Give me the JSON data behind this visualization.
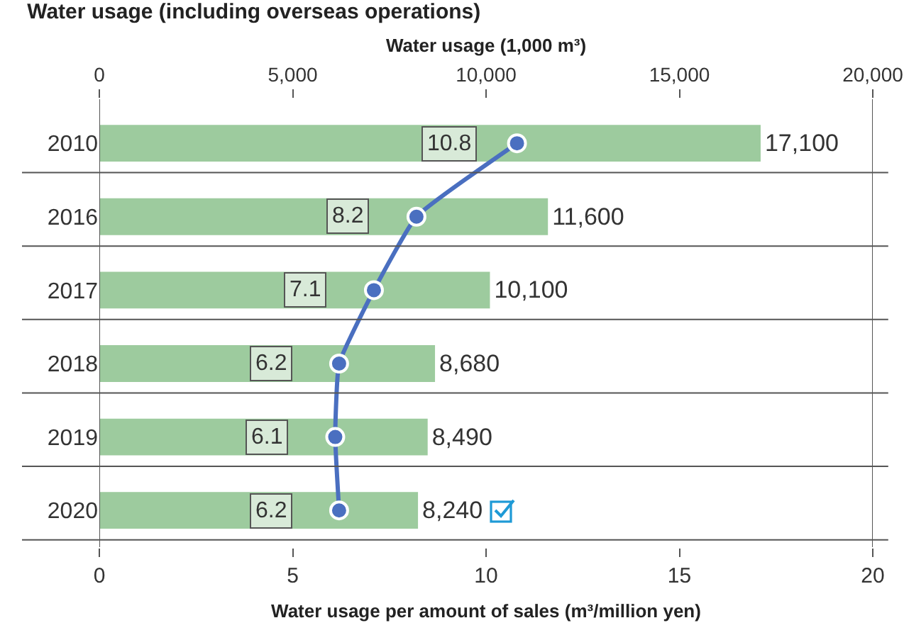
{
  "chart_data": {
    "type": "bar",
    "orientation": "horizontal",
    "title": "Water usage (including overseas operations)",
    "xlabel": "Water usage (1,000 m³)",
    "x2label": "Water usage per amount of sales (m³/million yen)",
    "categories": [
      "2010",
      "2016",
      "2017",
      "2018",
      "2019",
      "2020"
    ],
    "series": [
      {
        "color": "#9dcb9e",
        "values": [
          17100,
          11600,
          10100,
          8680,
          8490,
          8240
        ],
        "value_labels": [
          "17,100",
          "11,600",
          "10,100",
          "8,680",
          "8,490",
          "8,240"
        ]
      },
      {
        "type": "line",
        "axis": "x2",
        "color": "#4a6fc0",
        "values": [
          10.8,
          8.2,
          7.1,
          6.2,
          6.1,
          6.2
        ],
        "value_labels": [
          "10.8",
          "8.2",
          "7.1",
          "6.2",
          "6.1",
          "6.2"
        ]
      }
    ],
    "xlim": [
      0,
      20000
    ],
    "xticks": [
      {
        "value": 0,
        "label": "0"
      },
      {
        "value": 5000,
        "label": "5,000"
      },
      {
        "value": 10000,
        "label": "10,000"
      },
      {
        "value": 15000,
        "label": "15,000"
      },
      {
        "value": 20000,
        "label": "20,000"
      }
    ],
    "x2lim": [
      0,
      20
    ],
    "x2ticks": [
      0,
      5,
      10,
      15,
      20
    ],
    "marker": "circle",
    "grid": false,
    "legend": false
  }
}
